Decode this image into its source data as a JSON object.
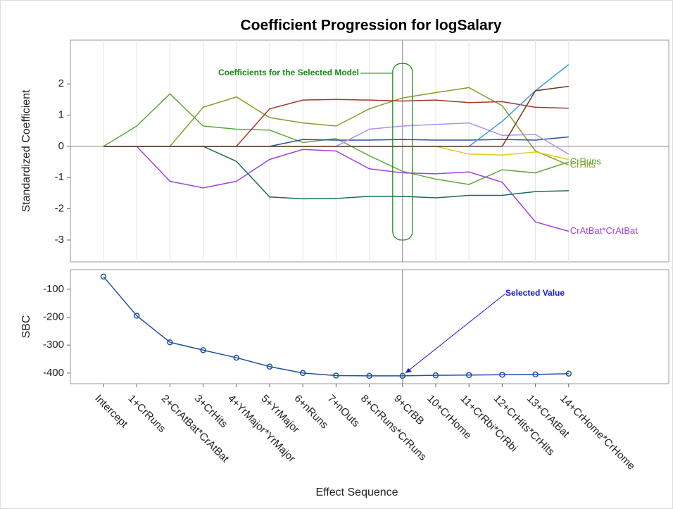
{
  "chart_data": [
    {
      "type": "line",
      "title": "Coefficient Progression for logSalary",
      "ylabel": "Standardized Coefficient",
      "annotation": "Coefficients for the Selected Model",
      "annotation_color": "#138a13",
      "ylim": [
        -3.7,
        3.4
      ],
      "yticks": [
        -3,
        -2,
        -1,
        0,
        1,
        2
      ],
      "grid": true,
      "selected_index": 9,
      "series": [
        {
          "name": "CrRuns",
          "color": "#5aaa3a",
          "values": [
            0,
            0.65,
            1.68,
            0.65,
            0.55,
            0.52,
            0.12,
            0.25,
            -0.3,
            -0.8,
            -1.05,
            -1.22,
            -0.75,
            -0.85,
            -0.5
          ]
        },
        {
          "name": "CrHits",
          "color": "#8e9a2a",
          "values": [
            0,
            0,
            0,
            1.25,
            1.58,
            0.92,
            0.75,
            0.65,
            1.2,
            1.55,
            1.72,
            1.88,
            1.3,
            -0.15,
            -0.6
          ]
        },
        {
          "name": "CrAtBat*CrAtBat",
          "color": "#a040e0",
          "values": [
            0,
            0,
            -1.12,
            -1.33,
            -1.12,
            -0.42,
            -0.1,
            -0.15,
            -0.72,
            -0.85,
            -0.88,
            -0.82,
            -1.15,
            -2.42,
            -2.72
          ]
        },
        {
          "color": "#1a6b5c",
          "values": [
            0,
            0,
            0,
            0,
            -0.48,
            -1.62,
            -1.68,
            -1.67,
            -1.6,
            -1.6,
            -1.65,
            -1.57,
            -1.57,
            -1.45,
            -1.42
          ]
        },
        {
          "color": "#a0392b",
          "values": [
            0,
            0,
            0,
            0,
            0,
            1.2,
            1.48,
            1.5,
            1.48,
            1.45,
            1.48,
            1.4,
            1.43,
            1.25,
            1.22
          ]
        },
        {
          "color": "#2a4fa0",
          "values": [
            0,
            0,
            0,
            0,
            0,
            0,
            0.22,
            0.2,
            0.2,
            0.22,
            0.2,
            0.2,
            0.22,
            0.2,
            0.3
          ]
        },
        {
          "color": "#b58ff0",
          "values": [
            0,
            0,
            0,
            0,
            0,
            0,
            0,
            0,
            0.55,
            0.65,
            0.7,
            0.75,
            0.35,
            0.38,
            -0.25
          ]
        },
        {
          "color": "#e8c81e",
          "values": [
            0,
            0,
            0,
            0,
            0,
            0,
            0,
            0,
            0,
            0,
            0,
            -0.25,
            -0.28,
            -0.18,
            -0.42
          ]
        },
        {
          "color": "#3a9ee0",
          "values": [
            0,
            0,
            0,
            0,
            0,
            0,
            0,
            0,
            0,
            0,
            0,
            0,
            0.8,
            1.78,
            2.62
          ]
        },
        {
          "color": "#6b3a1a",
          "values": [
            0,
            0,
            0,
            0,
            0,
            0,
            0,
            0,
            0,
            0,
            0,
            0,
            0,
            1.78,
            1.92
          ]
        }
      ]
    },
    {
      "type": "line",
      "ylabel": "SBC",
      "xlabel": "Effect Sequence",
      "annotation": "Selected Value",
      "annotation_color": "#1515e0",
      "color": "#1f4fa8",
      "ylim": [
        -438,
        -30
      ],
      "yticks": [
        -400,
        -300,
        -200,
        -100
      ],
      "selected_index": 9,
      "categories": [
        "Intercept",
        "1+CrRuns",
        "2+CrAtBat*CrAtBat",
        "3+CrHits",
        "4+YrMajor*YrMajor",
        "5+YrMajor",
        "6+nRuns",
        "7+nOuts",
        "8+CrRuns*CrRuns",
        "9+CrBB",
        "10+CrHome",
        "11+CrRbi*CrRbi",
        "12+CrHits*CrHits",
        "13+CrAtBat",
        "14+CrHome*CrHome"
      ],
      "values": [
        -55,
        -195,
        -290,
        -318,
        -345,
        -377,
        -400,
        -409,
        -410,
        -410,
        -408,
        -407,
        -406,
        -405,
        -402
      ]
    }
  ]
}
